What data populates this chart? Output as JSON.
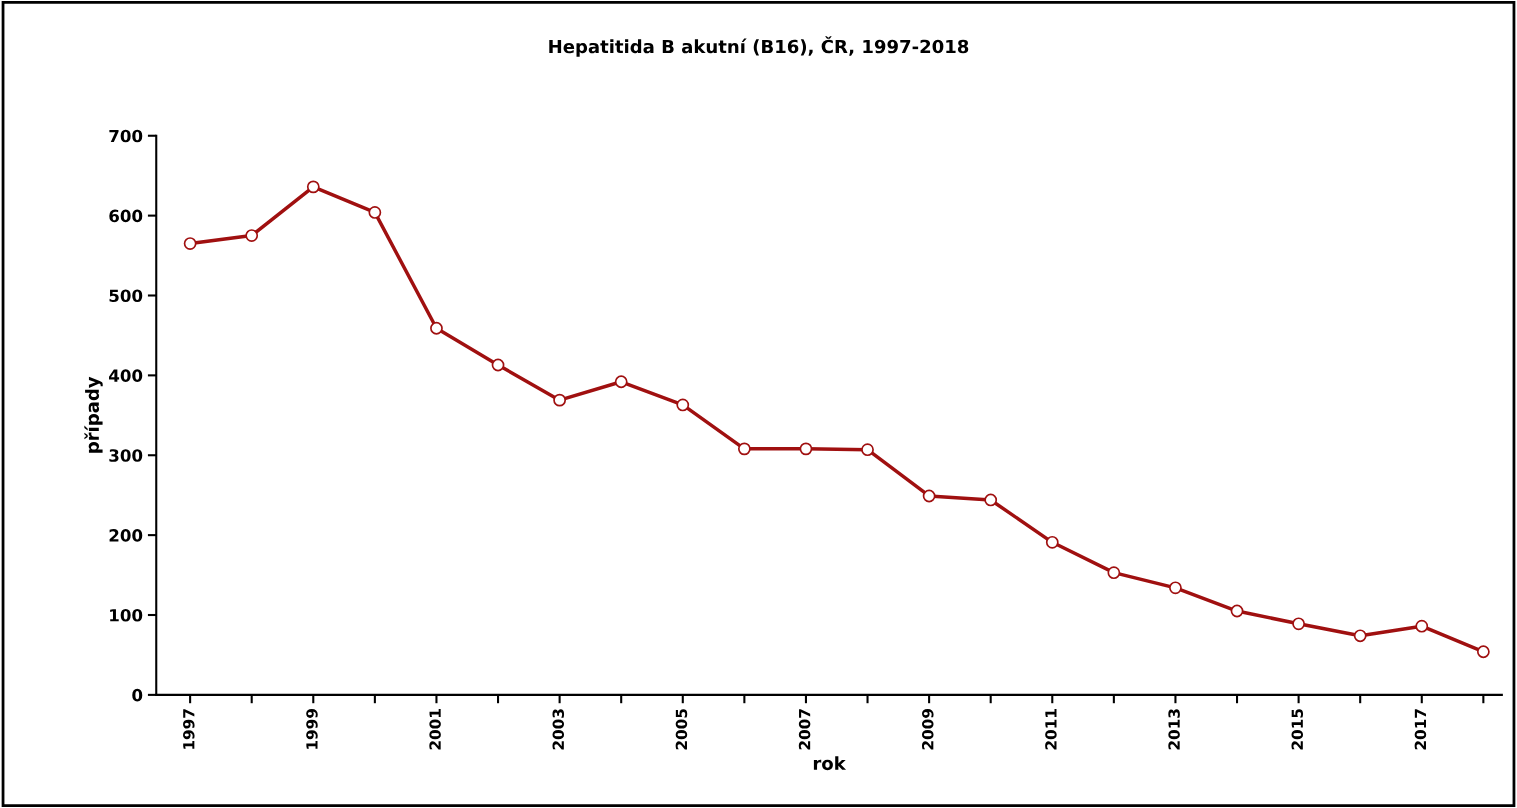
{
  "chart_data": {
    "type": "line",
    "title": "Hepatitida B akutní (B16), ČR, 1997-2018",
    "xlabel": "rok",
    "ylabel": "případy",
    "categories": [
      "1997",
      null,
      "1999",
      null,
      "2001",
      null,
      "2003",
      null,
      "2005",
      null,
      "2007",
      null,
      "2009",
      null,
      "2011",
      null,
      "2013",
      null,
      "2015",
      null,
      "2017",
      null
    ],
    "series": [
      {
        "color": "#a01010",
        "values": [
          565,
          575,
          636,
          604,
          459,
          413,
          369,
          392,
          363,
          308,
          308,
          307,
          249,
          244,
          191,
          153,
          134,
          105,
          89,
          74,
          86,
          54
        ]
      }
    ],
    "ylim": [
      0,
      700
    ],
    "yticks": [
      0,
      100,
      200,
      300,
      400,
      500,
      600,
      700
    ],
    "grid": false,
    "legend": false,
    "marker": "circle",
    "line_style": "solid"
  }
}
